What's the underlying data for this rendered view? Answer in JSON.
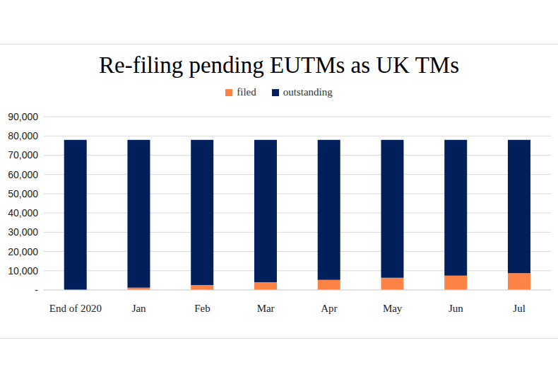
{
  "chart_data": {
    "type": "bar",
    "title": "Re-filing pending EUTMs as UK TMs",
    "categories": [
      "End of 2020",
      "Jan",
      "Feb",
      "Mar",
      "Apr",
      "May",
      "Jun",
      "Jul"
    ],
    "series": [
      {
        "name": "filed",
        "color": "#fd8346",
        "values": [
          0,
          1200,
          2600,
          4000,
          5200,
          6300,
          7400,
          8700
        ]
      },
      {
        "name": "outstanding",
        "color": "#001f5b",
        "values": [
          78000,
          76800,
          75400,
          74000,
          72800,
          71700,
          70600,
          69300
        ]
      }
    ],
    "ylim": [
      0,
      90000
    ],
    "yticks": [
      {
        "value": 0,
        "label": "-"
      },
      {
        "value": 10000,
        "label": "10,000"
      },
      {
        "value": 20000,
        "label": "20,000"
      },
      {
        "value": 30000,
        "label": "30,000"
      },
      {
        "value": 40000,
        "label": "40,000"
      },
      {
        "value": 50000,
        "label": "50,000"
      },
      {
        "value": 60000,
        "label": "60,000"
      },
      {
        "value": 70000,
        "label": "70,000"
      },
      {
        "value": 80000,
        "label": "80,000"
      },
      {
        "value": 90000,
        "label": "90,000"
      }
    ],
    "grid": true,
    "stacked": true,
    "legend": "top"
  }
}
